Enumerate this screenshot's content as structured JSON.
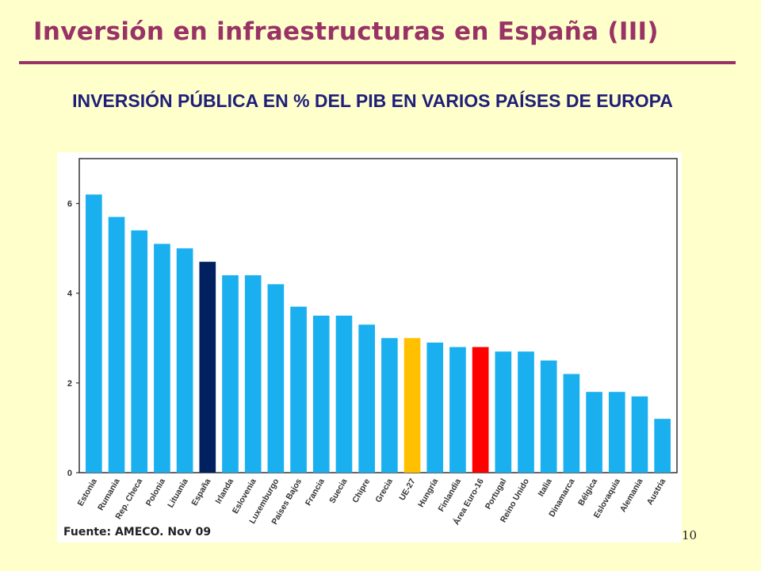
{
  "slide": {
    "title": "Inversión en infraestructuras en España (III)",
    "heading": "INVERSIÓN PÚBLICA EN % DEL PIB EN VARIOS PAÍSES DE EUROPA",
    "source": "Fuente: AMECO. Nov 09",
    "page_number": "10"
  },
  "chart_data": {
    "type": "bar",
    "title": "",
    "xlabel": "",
    "ylabel": "",
    "ylim": [
      0,
      7
    ],
    "yticks": [
      0,
      2,
      4,
      6
    ],
    "grid": false,
    "categories": [
      "Estonia",
      "Rumania",
      "Rep. Checa",
      "Polonia",
      "Lituania",
      "España",
      "Irlanda",
      "Eslovenia",
      "Luxemburgo",
      "Países Bajos",
      "Francia",
      "Suecia",
      "Chipre",
      "Grecia",
      "UE-27",
      "Hungría",
      "Finlandia",
      "Área Euro-16",
      "Portugal",
      "Reino Unido",
      "Italia",
      "Dinamarca",
      "Bélgica",
      "Eslovaquia",
      "Alemania",
      "Austria"
    ],
    "values": [
      6.2,
      5.7,
      5.4,
      5.1,
      5.0,
      4.7,
      4.4,
      4.4,
      4.2,
      3.7,
      3.5,
      3.5,
      3.3,
      3.0,
      3.0,
      2.9,
      2.8,
      2.8,
      2.7,
      2.7,
      2.5,
      2.2,
      1.8,
      1.8,
      1.7,
      1.2
    ],
    "colors": {
      "default": "#1ab0f0",
      "España": "#002060",
      "UE-27": "#ffc000",
      "Área Euro-16": "#ff0000"
    }
  }
}
